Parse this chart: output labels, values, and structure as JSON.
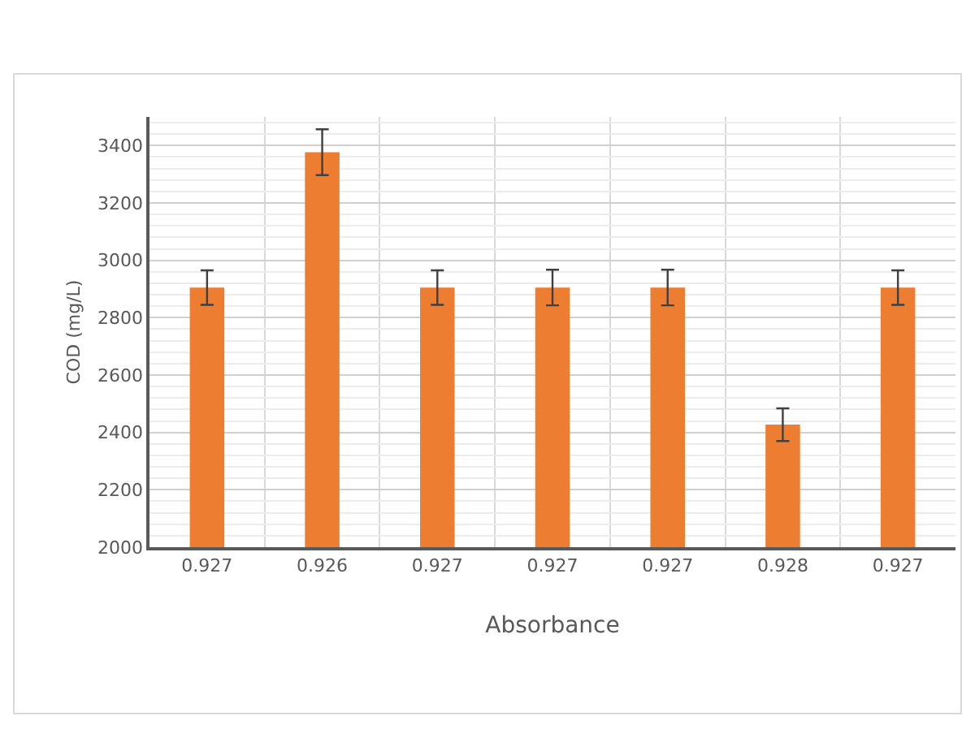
{
  "chart_data": {
    "type": "bar",
    "xlabel": "Absorbance",
    "ylabel": "COD (mg/L)",
    "categories": [
      "0.927",
      "0.926",
      "0.927",
      "0.927",
      "0.927",
      "0.928",
      "0.927"
    ],
    "values": [
      2905,
      3377,
      2905,
      2905,
      2905,
      2427,
      2905
    ],
    "errors": [
      60,
      80,
      60,
      62,
      62,
      57,
      60
    ],
    "color": "#ed7d31",
    "ylim": [
      2000,
      3500
    ],
    "yticks": [
      2000,
      2200,
      2400,
      2600,
      2800,
      3000,
      3200,
      3400
    ],
    "grid": true
  }
}
